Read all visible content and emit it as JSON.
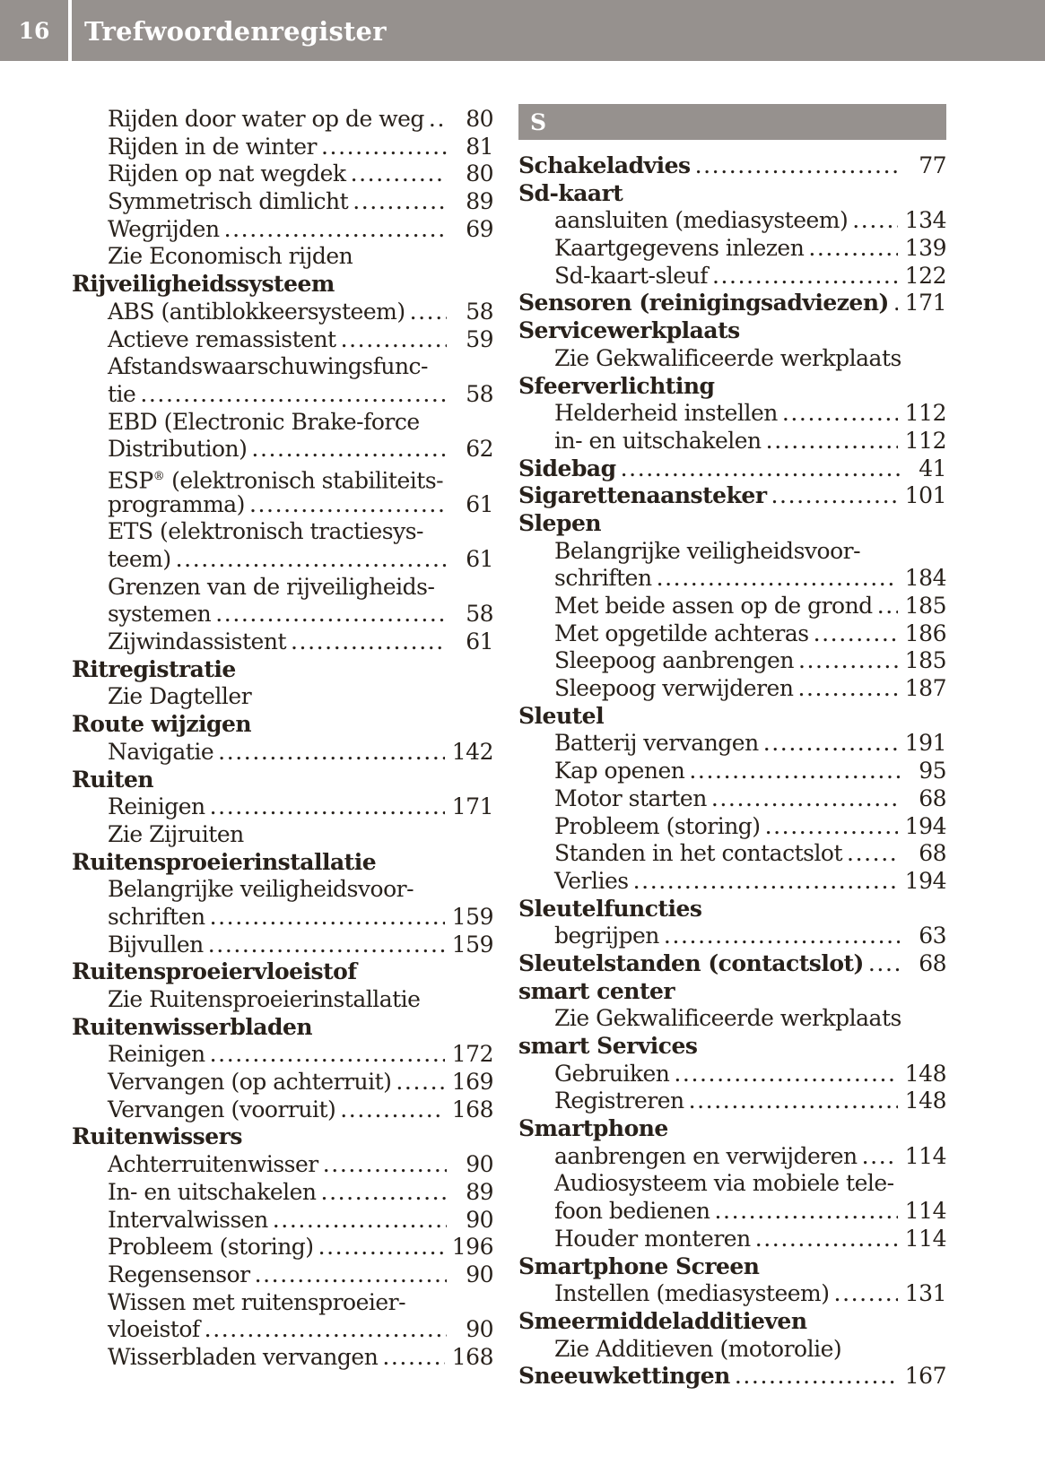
{
  "header": {
    "page_number": "16",
    "title": "Trefwoordenregister"
  },
  "colors": {
    "header_bg": "#96918e",
    "header_text": "#ffffff",
    "body_text": "#28211b"
  },
  "index": {
    "left_column": {
      "rows": [
        {
          "label": "Rijden door water op de weg",
          "page": "80",
          "indent": 1
        },
        {
          "label": "Rijden in de winter",
          "page": "81",
          "indent": 1
        },
        {
          "label": "Rijden op nat wegdek",
          "page": "80",
          "indent": 1
        },
        {
          "label": "Symmetrisch dimlicht",
          "page": "89",
          "indent": 1
        },
        {
          "label": "Wegrijden",
          "page": "69",
          "indent": 1
        },
        {
          "label": "Zie Economisch rijden",
          "page": "",
          "indent": 1
        },
        {
          "label": "Rijveiligheidssysteem",
          "page": "",
          "bold": true
        },
        {
          "label": "ABS (antiblokkeersysteem)",
          "page": "58",
          "indent": 1
        },
        {
          "label": "Actieve remassistent",
          "page": "59",
          "indent": 1
        },
        {
          "label": "Afstandswaarschuwingsfunc-",
          "page": "",
          "indent": 1
        },
        {
          "label": "tie",
          "page": "58",
          "indent": 1
        },
        {
          "label": "EBD (Electronic Brake-force",
          "page": "",
          "indent": 1
        },
        {
          "label": "Distribution)",
          "page": "62",
          "indent": 1
        },
        {
          "label": [
            "ESP",
            {
              "sup": "®"
            },
            " (elektronisch stabiliteits-"
          ],
          "page": "",
          "indent": 1
        },
        {
          "label": "programma)",
          "page": "61",
          "indent": 1
        },
        {
          "label": "ETS (elektronisch tractiesys-",
          "page": "",
          "indent": 1
        },
        {
          "label": "teem)",
          "page": "61",
          "indent": 1
        },
        {
          "label": "Grenzen van de rijveiligheids-",
          "page": "",
          "indent": 1
        },
        {
          "label": "systemen",
          "page": "58",
          "indent": 1
        },
        {
          "label": "Zijwindassistent",
          "page": "61",
          "indent": 1
        },
        {
          "label": "Ritregistratie",
          "page": "",
          "bold": true
        },
        {
          "label": "Zie Dagteller",
          "page": "",
          "indent": 1
        },
        {
          "label": "Route wijzigen",
          "page": "",
          "bold": true
        },
        {
          "label": "Navigatie",
          "page": "142",
          "indent": 1
        },
        {
          "label": "Ruiten",
          "page": "",
          "bold": true
        },
        {
          "label": "Reinigen",
          "page": "171",
          "indent": 1
        },
        {
          "label": "Zie Zijruiten",
          "page": "",
          "indent": 1
        },
        {
          "label": "Ruitensproeierinstallatie",
          "page": "",
          "bold": true
        },
        {
          "label": "Belangrijke veiligheidsvoor-",
          "page": "",
          "indent": 1
        },
        {
          "label": "schriften",
          "page": "159",
          "indent": 1
        },
        {
          "label": "Bijvullen",
          "page": "159",
          "indent": 1
        },
        {
          "label": "Ruitensproeiervloeistof",
          "page": "",
          "bold": true
        },
        {
          "label": "Zie Ruitensproeierinstallatie",
          "page": "",
          "indent": 1
        },
        {
          "label": "Ruitenwisserbladen",
          "page": "",
          "bold": true
        },
        {
          "label": "Reinigen",
          "page": "172",
          "indent": 1
        },
        {
          "label": "Vervangen (op achterruit)",
          "page": "169",
          "indent": 1
        },
        {
          "label": "Vervangen (voorruit)",
          "page": "168",
          "indent": 1
        },
        {
          "label": "Ruitenwissers",
          "page": "",
          "bold": true
        },
        {
          "label": "Achterruitenwisser",
          "page": "90",
          "indent": 1
        },
        {
          "label": "In- en uitschakelen",
          "page": "89",
          "indent": 1
        },
        {
          "label": "Intervalwissen",
          "page": "90",
          "indent": 1
        },
        {
          "label": "Probleem (storing)",
          "page": "196",
          "indent": 1
        },
        {
          "label": "Regensensor",
          "page": "90",
          "indent": 1
        },
        {
          "label": "Wissen met ruitensproeier-",
          "page": "",
          "indent": 1
        },
        {
          "label": "vloeistof",
          "page": "90",
          "indent": 1
        },
        {
          "label": "Wisserbladen vervangen",
          "page": "168",
          "indent": 1
        }
      ]
    },
    "right_column": {
      "rows": [
        {
          "letter": "S"
        },
        {
          "label": "Schakeladvies",
          "page": "77",
          "bold": true
        },
        {
          "label": "Sd-kaart",
          "page": "",
          "bold": true
        },
        {
          "label": "aansluiten (mediasysteem)",
          "page": "134",
          "indent": 1
        },
        {
          "label": "Kaartgegevens inlezen",
          "page": "139",
          "indent": 1
        },
        {
          "label": "Sd-kaart-sleuf",
          "page": "122",
          "indent": 1
        },
        {
          "label": "Sensoren (reinigingsadviezen)",
          "page": "171",
          "bold": true
        },
        {
          "label": "Servicewerkplaats",
          "page": "",
          "bold": true
        },
        {
          "label": "Zie Gekwalificeerde werkplaats",
          "page": "",
          "indent": 1
        },
        {
          "label": "Sfeerverlichting",
          "page": "",
          "bold": true
        },
        {
          "label": "Helderheid instellen",
          "page": "112",
          "indent": 1
        },
        {
          "label": "in- en uitschakelen",
          "page": "112",
          "indent": 1
        },
        {
          "label": "Sidebag",
          "page": "41",
          "bold": true
        },
        {
          "label": "Sigarettenaansteker",
          "page": "101",
          "bold": true
        },
        {
          "label": "Slepen",
          "page": "",
          "bold": true
        },
        {
          "label": "Belangrijke veiligheidsvoor-",
          "page": "",
          "indent": 1
        },
        {
          "label": "schriften",
          "page": "184",
          "indent": 1
        },
        {
          "label": "Met beide assen op de grond",
          "page": "185",
          "indent": 1
        },
        {
          "label": "Met opgetilde achteras",
          "page": "186",
          "indent": 1
        },
        {
          "label": "Sleepoog aanbrengen",
          "page": "185",
          "indent": 1
        },
        {
          "label": "Sleepoog verwijderen",
          "page": "187",
          "indent": 1
        },
        {
          "label": "Sleutel",
          "page": "",
          "bold": true
        },
        {
          "label": "Batterij vervangen",
          "page": "191",
          "indent": 1
        },
        {
          "label": "Kap openen",
          "page": "95",
          "indent": 1
        },
        {
          "label": "Motor starten",
          "page": "68",
          "indent": 1
        },
        {
          "label": "Probleem (storing)",
          "page": "194",
          "indent": 1
        },
        {
          "label": "Standen in het contactslot",
          "page": "68",
          "indent": 1
        },
        {
          "label": "Verlies",
          "page": "194",
          "indent": 1
        },
        {
          "label": "Sleutelfuncties",
          "page": "",
          "bold": true
        },
        {
          "label": "begrijpen",
          "page": "63",
          "indent": 1
        },
        {
          "label": "Sleutelstanden (contactslot)",
          "page": "68",
          "bold": true
        },
        {
          "label": "smart center",
          "page": "",
          "bold": true
        },
        {
          "label": "Zie Gekwalificeerde werkplaats",
          "page": "",
          "indent": 1
        },
        {
          "label": "smart Services",
          "page": "",
          "bold": true
        },
        {
          "label": "Gebruiken",
          "page": "148",
          "indent": 1
        },
        {
          "label": "Registreren",
          "page": "148",
          "indent": 1
        },
        {
          "label": "Smartphone",
          "page": "",
          "bold": true
        },
        {
          "label": "aanbrengen en verwijderen",
          "page": "114",
          "indent": 1
        },
        {
          "label": "Audiosysteem via mobiele tele-",
          "page": "",
          "indent": 1
        },
        {
          "label": "foon bedienen",
          "page": "114",
          "indent": 1
        },
        {
          "label": "Houder monteren",
          "page": "114",
          "indent": 1
        },
        {
          "label": "Smartphone Screen",
          "page": "",
          "bold": true
        },
        {
          "label": "Instellen (mediasysteem)",
          "page": "131",
          "indent": 1
        },
        {
          "label": "Smeermiddeladditieven",
          "page": "",
          "bold": true
        },
        {
          "label": "Zie Additieven (motorolie)",
          "page": "",
          "indent": 1
        },
        {
          "label": "Sneeuwkettingen",
          "page": "167",
          "bold": true
        }
      ]
    }
  }
}
